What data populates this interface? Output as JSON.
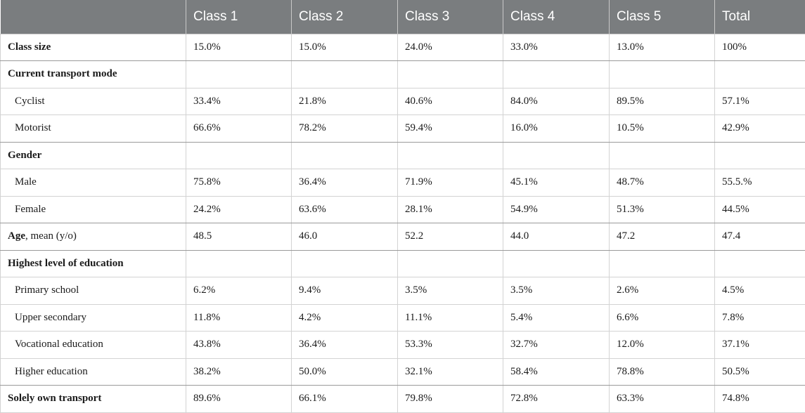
{
  "header": [
    "",
    "Class 1",
    "Class 2",
    "Class 3",
    "Class 4",
    "Class 5",
    "Total"
  ],
  "rows": [
    {
      "label": "Class size",
      "bold": true,
      "indent": false,
      "values": [
        "15.0%",
        "15.0%",
        "24.0%",
        "33.0%",
        "13.0%",
        "100%"
      ]
    },
    {
      "label": "Current transport mode",
      "bold": true,
      "indent": false,
      "values": [
        "",
        "",
        "",
        "",
        "",
        ""
      ]
    },
    {
      "label": "Cyclist",
      "bold": false,
      "indent": true,
      "values": [
        "33.4%",
        "21.8%",
        "40.6%",
        "84.0%",
        "89.5%",
        "57.1%"
      ]
    },
    {
      "label": "Motorist",
      "bold": false,
      "indent": true,
      "values": [
        "66.6%",
        "78.2%",
        "59.4%",
        "16.0%",
        "10.5%",
        "42.9%"
      ]
    },
    {
      "label": "Gender",
      "bold": true,
      "indent": false,
      "values": [
        "",
        "",
        "",
        "",
        "",
        ""
      ]
    },
    {
      "label": "Male",
      "bold": false,
      "indent": true,
      "values": [
        "75.8%",
        "36.4%",
        "71.9%",
        "45.1%",
        "48.7%",
        "55.5.%"
      ]
    },
    {
      "label": "Female",
      "bold": false,
      "indent": true,
      "values": [
        "24.2%",
        "63.6%",
        "28.1%",
        "54.9%",
        "51.3%",
        "44.5%"
      ]
    },
    {
      "label": "Age",
      "label_suffix": ", mean (y/o)",
      "bold": true,
      "indent": false,
      "values": [
        "48.5",
        "46.0",
        "52.2",
        "44.0",
        "47.2",
        "47.4"
      ]
    },
    {
      "label": "Highest level of education",
      "bold": true,
      "indent": false,
      "values": [
        "",
        "",
        "",
        "",
        "",
        ""
      ]
    },
    {
      "label": "Primary school",
      "bold": false,
      "indent": true,
      "values": [
        "6.2%",
        "9.4%",
        "3.5%",
        "3.5%",
        "2.6%",
        "4.5%"
      ]
    },
    {
      "label": "Upper secondary",
      "bold": false,
      "indent": true,
      "values": [
        "11.8%",
        "4.2%",
        "11.1%",
        "5.4%",
        "6.6%",
        "7.8%"
      ]
    },
    {
      "label": "Vocational education",
      "bold": false,
      "indent": true,
      "values": [
        "43.8%",
        "36.4%",
        "53.3%",
        "32.7%",
        "12.0%",
        "37.1%"
      ]
    },
    {
      "label": "Higher education",
      "bold": false,
      "indent": true,
      "values": [
        "38.2%",
        "50.0%",
        "32.1%",
        "58.4%",
        "78.8%",
        "50.5%"
      ]
    },
    {
      "label": "Solely own transport",
      "bold": true,
      "indent": false,
      "values": [
        "89.6%",
        "66.1%",
        "79.8%",
        "72.8%",
        "63.3%",
        "74.8%"
      ]
    }
  ]
}
